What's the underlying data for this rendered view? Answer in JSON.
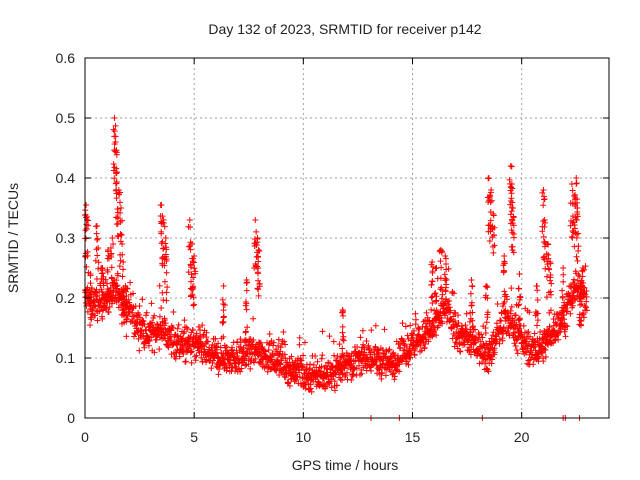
{
  "chart_data": {
    "type": "scatter",
    "title": "Day 132 of 2023, SRMTID for receiver p142",
    "xlabel": "GPS time / hours",
    "ylabel": "SRMTID / TECUs",
    "xlim": [
      0,
      24
    ],
    "ylim": [
      0,
      0.6
    ],
    "x_ticks": [
      0,
      5,
      10,
      15,
      20
    ],
    "x_tick_labels": [
      "0",
      "5",
      "10",
      "15",
      "20"
    ],
    "y_ticks": [
      0,
      0.1,
      0.2,
      0.3,
      0.4,
      0.5,
      0.6
    ],
    "y_tick_labels": [
      "0",
      "0.1",
      "0.2",
      "0.3",
      "0.4",
      "0.5",
      "0.6"
    ],
    "grid": true,
    "marker": "plus",
    "series": [
      {
        "name": "SRMTID",
        "color": "#ff0000",
        "baseline_profile": [
          [
            0.0,
            0.2
          ],
          [
            0.5,
            0.19
          ],
          [
            1.0,
            0.2
          ],
          [
            1.5,
            0.21
          ],
          [
            2.0,
            0.18
          ],
          [
            2.5,
            0.15
          ],
          [
            3.0,
            0.14
          ],
          [
            3.5,
            0.15
          ],
          [
            4.0,
            0.13
          ],
          [
            4.5,
            0.12
          ],
          [
            5.0,
            0.12
          ],
          [
            6.0,
            0.1
          ],
          [
            7.0,
            0.1
          ],
          [
            8.0,
            0.11
          ],
          [
            9.0,
            0.09
          ],
          [
            10.0,
            0.07
          ],
          [
            11.0,
            0.07
          ],
          [
            12.0,
            0.09
          ],
          [
            13.0,
            0.1
          ],
          [
            14.0,
            0.09
          ],
          [
            15.0,
            0.12
          ],
          [
            16.0,
            0.15
          ],
          [
            16.5,
            0.19
          ],
          [
            17.0,
            0.14
          ],
          [
            18.0,
            0.12
          ],
          [
            18.5,
            0.1
          ],
          [
            19.0,
            0.15
          ],
          [
            19.5,
            0.16
          ],
          [
            20.0,
            0.13
          ],
          [
            20.5,
            0.11
          ],
          [
            21.0,
            0.12
          ],
          [
            21.5,
            0.15
          ],
          [
            22.0,
            0.17
          ],
          [
            22.5,
            0.22
          ],
          [
            23.0,
            0.2
          ]
        ],
        "spikes": [
          [
            0.05,
            0.355
          ],
          [
            0.1,
            0.33
          ],
          [
            0.25,
            0.24
          ],
          [
            0.55,
            0.32
          ],
          [
            0.8,
            0.25
          ],
          [
            1.05,
            0.28
          ],
          [
            1.25,
            0.3
          ],
          [
            1.35,
            0.5
          ],
          [
            1.4,
            0.46
          ],
          [
            1.45,
            0.41
          ],
          [
            1.55,
            0.38
          ],
          [
            1.65,
            0.35
          ],
          [
            1.75,
            0.26
          ],
          [
            1.85,
            0.22
          ],
          [
            3.5,
            0.355
          ],
          [
            3.6,
            0.33
          ],
          [
            3.7,
            0.3
          ],
          [
            4.8,
            0.33
          ],
          [
            4.9,
            0.29
          ],
          [
            5.0,
            0.27
          ],
          [
            6.35,
            0.22
          ],
          [
            7.4,
            0.23
          ],
          [
            7.8,
            0.33
          ],
          [
            7.9,
            0.3
          ],
          [
            7.95,
            0.28
          ],
          [
            11.8,
            0.18
          ],
          [
            15.9,
            0.26
          ],
          [
            16.1,
            0.25
          ],
          [
            16.3,
            0.28
          ],
          [
            16.5,
            0.27
          ],
          [
            17.7,
            0.23
          ],
          [
            18.4,
            0.22
          ],
          [
            18.5,
            0.4
          ],
          [
            18.6,
            0.38
          ],
          [
            18.7,
            0.34
          ],
          [
            19.2,
            0.27
          ],
          [
            19.5,
            0.42
          ],
          [
            19.55,
            0.39
          ],
          [
            19.6,
            0.35
          ],
          [
            19.9,
            0.24
          ],
          [
            20.7,
            0.22
          ],
          [
            21.0,
            0.38
          ],
          [
            21.05,
            0.33
          ],
          [
            21.2,
            0.29
          ],
          [
            21.3,
            0.26
          ],
          [
            21.9,
            0.25
          ],
          [
            22.3,
            0.39
          ],
          [
            22.4,
            0.37
          ],
          [
            22.5,
            0.4
          ],
          [
            22.55,
            0.35
          ],
          [
            22.7,
            0.22
          ],
          [
            22.8,
            0.25
          ]
        ],
        "zero_points": [
          13.1,
          14.4,
          18.2,
          21.9,
          22.0,
          22.65
        ]
      }
    ]
  }
}
